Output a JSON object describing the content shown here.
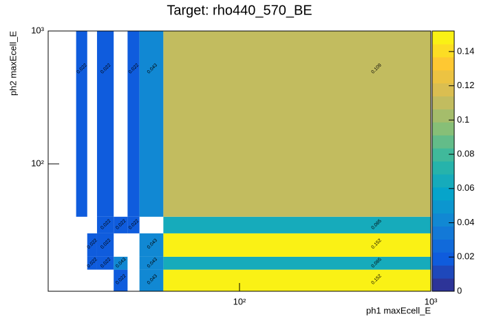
{
  "chart_data": {
    "type": "heatmap",
    "title": "Target: rho440_570_BE",
    "x_label": "ph1 maxEcell_E",
    "y_label": "ph2 maxEcell_E",
    "x_log": true,
    "y_log": true,
    "palette": "bird",
    "x_edges": [
      10,
      14,
      16,
      18,
      22,
      26,
      30,
      40,
      1000
    ],
    "y_edges": [
      11,
      16,
      20,
      30,
      40,
      1000
    ],
    "values": [
      [
        null,
        null,
        null,
        null,
        0.022,
        null,
        0.043,
        0.152
      ],
      [
        null,
        null,
        0.022,
        0.022,
        0.043,
        null,
        0.043,
        0.065
      ],
      [
        null,
        null,
        0.022,
        0.022,
        null,
        null,
        0.043,
        0.152
      ],
      [
        null,
        null,
        null,
        0.022,
        0.022,
        0.022,
        null,
        0.065
      ],
      [
        null,
        0.022,
        null,
        0.022,
        null,
        0.022,
        0.043,
        0.109
      ]
    ],
    "xlim": [
      10,
      1000
    ],
    "ylim": [
      11,
      1000
    ],
    "xticks": [
      {
        "value": 100,
        "label": "10²"
      },
      {
        "value": 1000,
        "label": "10³"
      }
    ],
    "yticks": [
      {
        "value": 100,
        "label": "10²"
      },
      {
        "value": 1000,
        "label": "10³"
      }
    ],
    "zlim": [
      0,
      0.152
    ],
    "zticks": [
      0,
      0.02,
      0.04,
      0.06,
      0.08,
      0.1,
      0.12,
      0.14
    ]
  }
}
